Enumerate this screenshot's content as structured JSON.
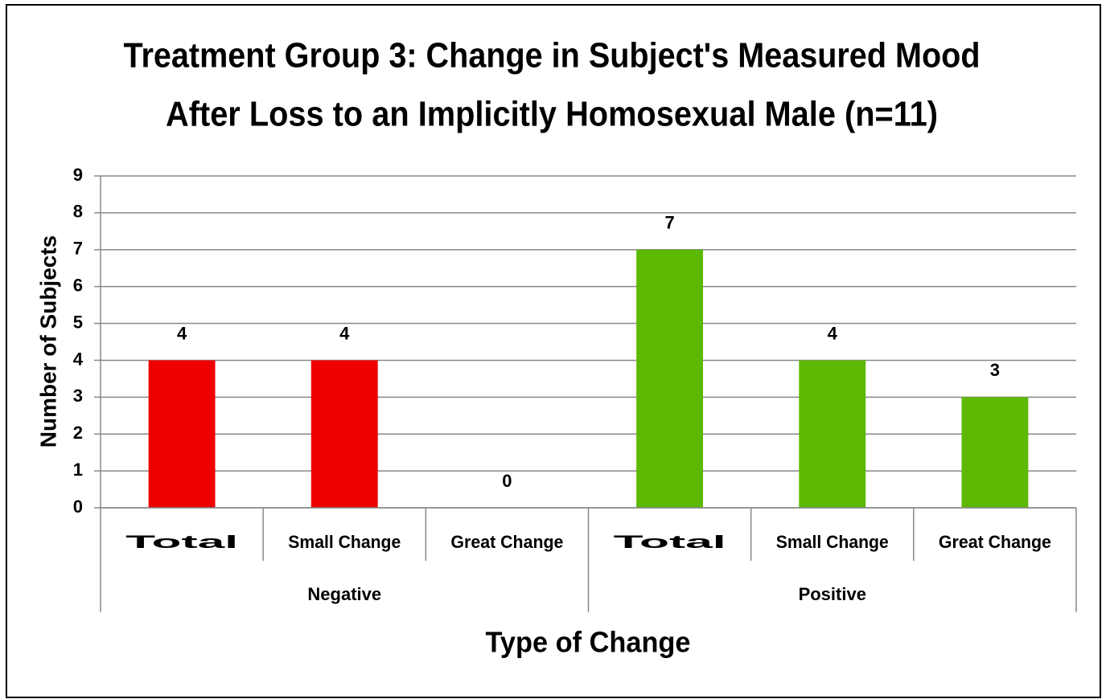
{
  "chart_data": {
    "type": "bar",
    "title": [
      "Treatment Group 3: Change in Subject's Measured Mood",
      "After Loss to an Implicitly Homosexual Male (n=11)"
    ],
    "ylabel": "Number of Subjects",
    "xlabel": "Type of Change",
    "series": [
      {
        "name": "Negative",
        "color": "#ee0000",
        "categories": [
          "Total",
          "Small Change",
          "Great Change"
        ],
        "values": [
          4,
          4,
          0
        ]
      },
      {
        "name": "Positive",
        "color": "#5cb800",
        "categories": [
          "Total",
          "Small Change",
          "Great Change"
        ],
        "values": [
          7,
          4,
          3
        ]
      }
    ],
    "ylim": [
      0,
      9
    ],
    "yticks": [
      0,
      1,
      2,
      3,
      4,
      5,
      6,
      7,
      8,
      9
    ],
    "grid": true,
    "data_labels": true
  }
}
